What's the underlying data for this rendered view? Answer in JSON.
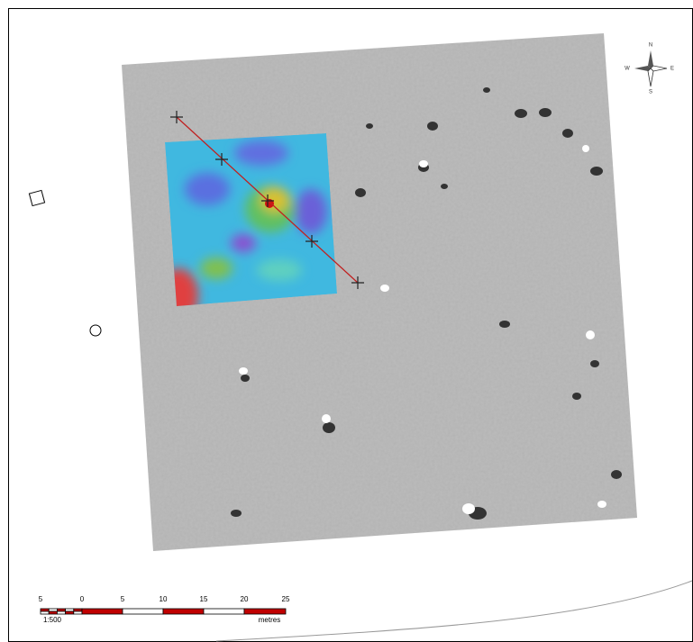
{
  "compass": {
    "north": "N",
    "east": "E",
    "south": "S",
    "west": "W"
  },
  "scale_bar": {
    "ticks": [
      "5",
      "0",
      "5",
      "10",
      "15",
      "20",
      "25"
    ],
    "ratio": "1:500",
    "unit": "metres"
  }
}
